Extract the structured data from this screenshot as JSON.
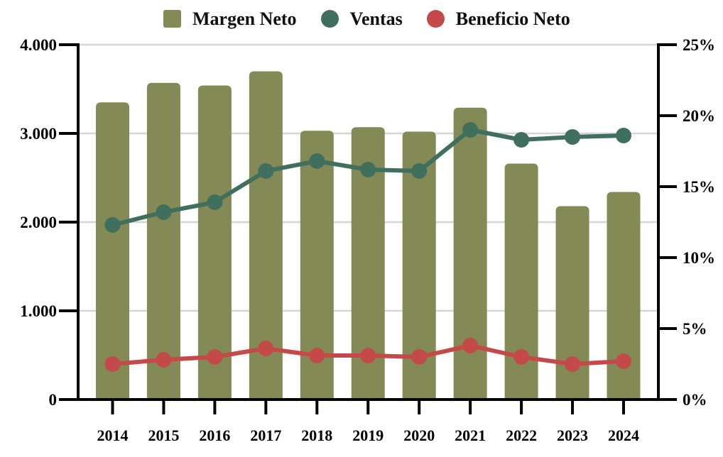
{
  "legend": {
    "items": [
      {
        "label": "Margen Neto",
        "marker": "square",
        "color": "#838a56"
      },
      {
        "label": "Ventas",
        "marker": "circle",
        "color": "#406f5d"
      },
      {
        "label": "Beneficio Neto",
        "marker": "circle",
        "color": "#c44a4a"
      }
    ]
  },
  "chart_data": {
    "type": "combo-bar-line",
    "title": "",
    "categories": [
      "2014",
      "2015",
      "2016",
      "2017",
      "2018",
      "2019",
      "2020",
      "2021",
      "2022",
      "2023",
      "2024"
    ],
    "series": [
      {
        "name": "Margen Neto",
        "type": "bar",
        "axis": "left",
        "color": "#838a56",
        "values": [
          3350,
          3570,
          3540,
          3700,
          3030,
          3070,
          3020,
          3290,
          2660,
          2180,
          2340
        ]
      },
      {
        "name": "Ventas",
        "type": "line",
        "axis": "right",
        "color": "#406f5d",
        "values": [
          12.3,
          13.2,
          13.9,
          16.1,
          16.8,
          16.2,
          16.1,
          19.0,
          18.3,
          18.5,
          18.6
        ]
      },
      {
        "name": "Beneficio Neto",
        "type": "line",
        "axis": "right",
        "color": "#c44a4a",
        "values": [
          2.5,
          2.8,
          3.0,
          3.6,
          3.1,
          3.1,
          3.0,
          3.8,
          3.0,
          2.5,
          2.7
        ]
      }
    ],
    "left_axis": {
      "min": 0,
      "max": 4000,
      "tick_values": [
        0,
        1000,
        2000,
        3000,
        4000
      ],
      "tick_labels": [
        "0",
        "1.000",
        "2.000",
        "3.000",
        "4.000"
      ]
    },
    "right_axis": {
      "min": 0,
      "max": 25,
      "tick_values": [
        0,
        5,
        10,
        15,
        20,
        25
      ],
      "tick_labels": [
        "0%",
        "5%",
        "10%",
        "15%",
        "20%",
        "25%"
      ]
    },
    "grid": "horizontal (at left-axis ticks)",
    "legend_position": "top",
    "colors": {
      "grid": "#d5d5d5",
      "axis": "#000000",
      "text": "#000000",
      "background": "#ffffff"
    }
  }
}
